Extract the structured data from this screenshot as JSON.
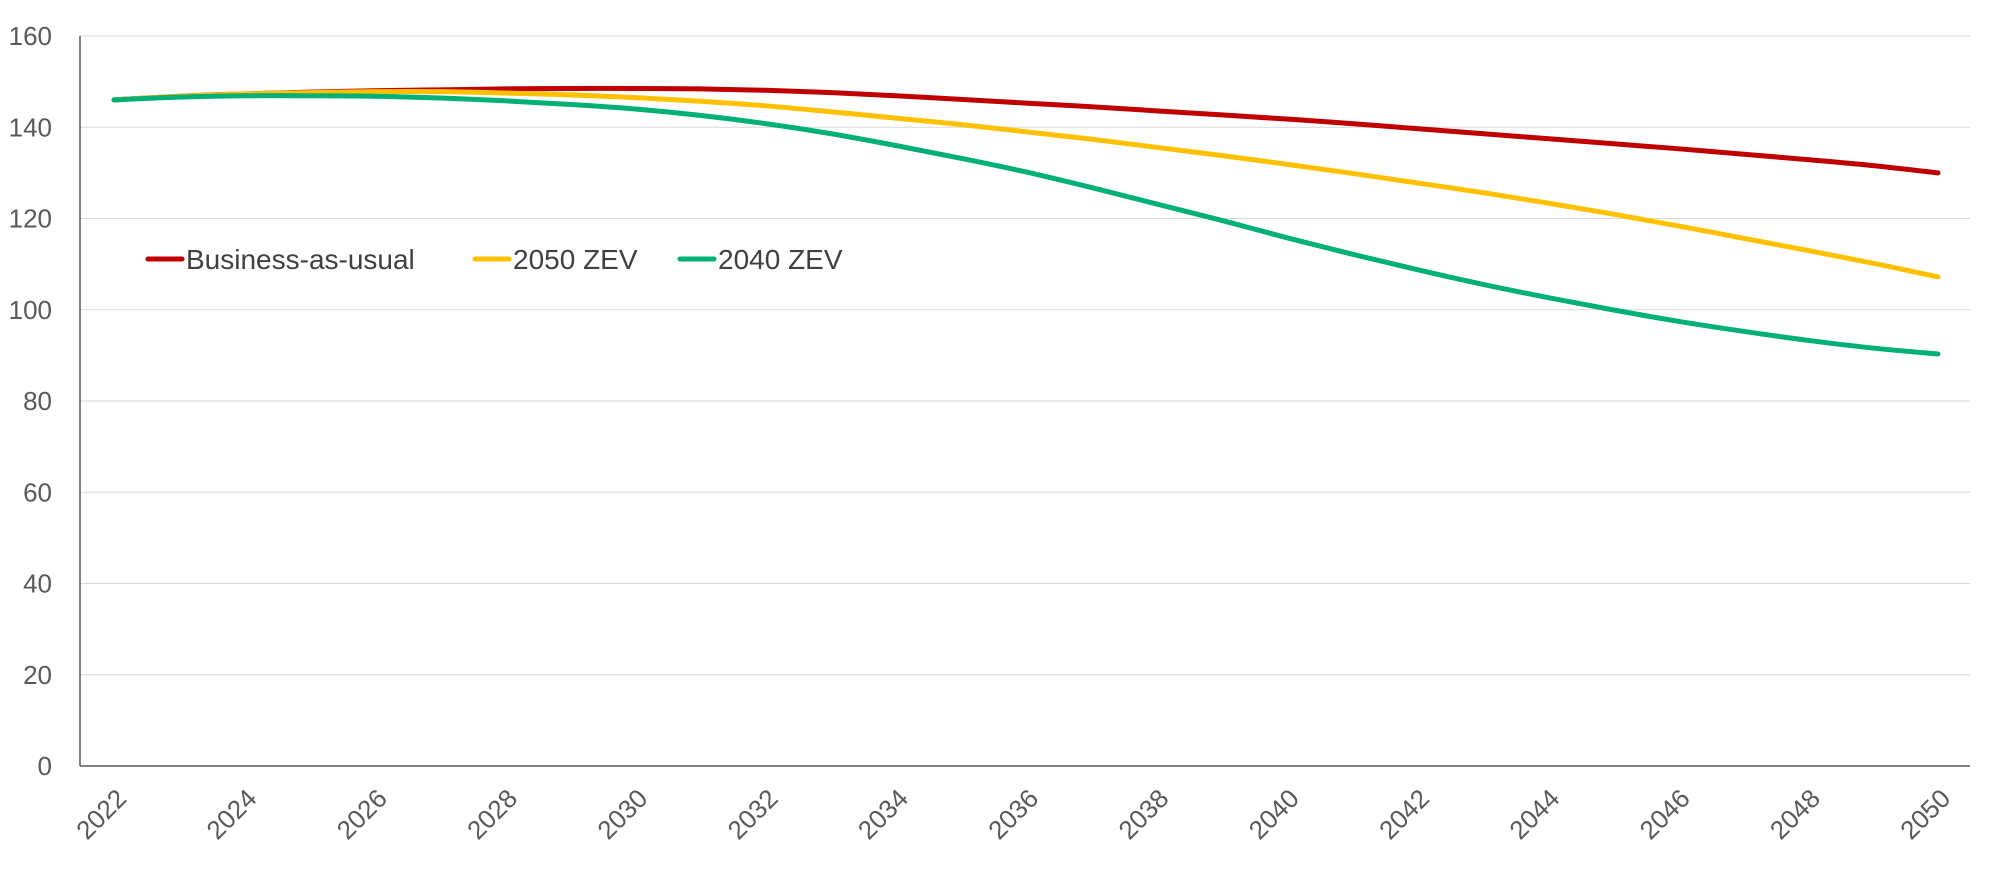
{
  "chart_data": {
    "type": "line",
    "title": "",
    "xlabel": "",
    "ylabel": "",
    "ylim": [
      0,
      160
    ],
    "yticks": [
      0,
      20,
      40,
      60,
      80,
      100,
      120,
      140,
      160
    ],
    "x": [
      2022,
      2023,
      2024,
      2025,
      2026,
      2027,
      2028,
      2029,
      2030,
      2031,
      2032,
      2033,
      2034,
      2035,
      2036,
      2037,
      2038,
      2039,
      2040,
      2041,
      2042,
      2043,
      2044,
      2045,
      2046,
      2047,
      2048,
      2049,
      2050
    ],
    "xtick_labels": [
      "2022",
      "2024",
      "2026",
      "2028",
      "2030",
      "2032",
      "2034",
      "2036",
      "2038",
      "2040",
      "2042",
      "2044",
      "2046",
      "2048",
      "2050"
    ],
    "legend_position": "upper-left",
    "grid": true,
    "series": [
      {
        "name": "Business-as-usual",
        "color": "#C00000",
        "values": [
          146,
          146.8,
          147.3,
          147.7,
          148,
          148.2,
          148.4,
          148.5,
          148.5,
          148.4,
          148.1,
          147.6,
          146.9,
          146.1,
          145.3,
          144.5,
          143.6,
          142.7,
          141.8,
          140.8,
          139.7,
          138.6,
          137.5,
          136.4,
          135.3,
          134.1,
          132.9,
          131.6,
          130
        ]
      },
      {
        "name": "2050 ZEV",
        "color": "#FFC000",
        "values": [
          146,
          146.8,
          147.3,
          147.6,
          147.8,
          147.8,
          147.5,
          147.1,
          146.5,
          145.7,
          144.7,
          143.4,
          142,
          140.6,
          139,
          137.4,
          135.6,
          133.8,
          131.9,
          129.9,
          127.8,
          125.7,
          123.4,
          121,
          118.4,
          115.7,
          113,
          110.2,
          107.2
        ]
      },
      {
        "name": "2040 ZEV",
        "color": "#00B074",
        "values": [
          146,
          146.6,
          146.9,
          146.9,
          146.8,
          146.4,
          145.8,
          145,
          144,
          142.6,
          140.8,
          138.6,
          136,
          133.2,
          130.2,
          126.8,
          123.2,
          119.6,
          115.8,
          112.2,
          108.8,
          105.6,
          102.7,
          100,
          97.5,
          95.3,
          93.3,
          91.6,
          90.3
        ]
      }
    ]
  }
}
